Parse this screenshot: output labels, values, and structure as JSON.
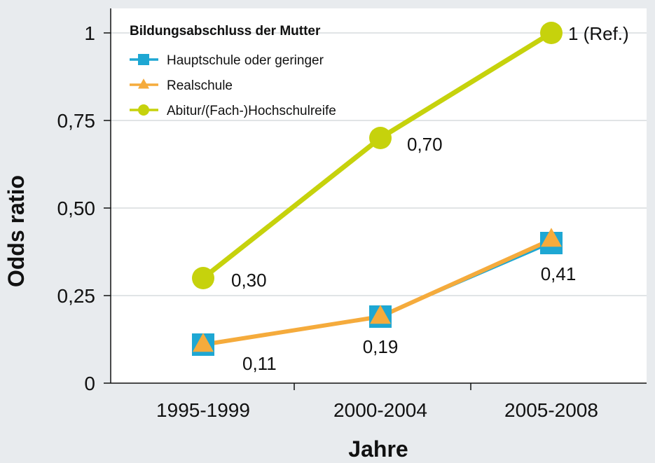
{
  "chart_data": {
    "type": "line",
    "categories": [
      "1995-1999",
      "2000-2004",
      "2005-2008"
    ],
    "ylim": [
      0,
      1
    ],
    "yticks": [
      {
        "value": 0,
        "label": "0"
      },
      {
        "value": 0.25,
        "label": "0,25"
      },
      {
        "value": 0.5,
        "label": "0,50"
      },
      {
        "value": 0.75,
        "label": "0,75"
      },
      {
        "value": 1,
        "label": "1"
      }
    ],
    "xlabel": "Jahre",
    "ylabel": "Odds ratio",
    "grid": true,
    "legend": {
      "title": "Bildungsabschluss der Mutter",
      "placement": "top-left"
    },
    "series": [
      {
        "name": "Hauptschule oder geringer",
        "values": [
          0.11,
          0.19,
          0.4
        ],
        "color": "#1ea7d3",
        "marker": "square"
      },
      {
        "name": "Realschule",
        "values": [
          0.11,
          0.19,
          0.41
        ],
        "color": "#f5ab3c",
        "marker": "triangle"
      },
      {
        "name": "Abitur/(Fach-)Hochschulreife",
        "values": [
          0.3,
          0.7,
          1.0
        ],
        "color": "#c6d20c",
        "marker": "circle"
      }
    ],
    "annotations": [
      {
        "series": 2,
        "index": 0,
        "text": "0,30"
      },
      {
        "series": 2,
        "index": 1,
        "text": "0,70"
      },
      {
        "series": 2,
        "index": 2,
        "text": "1 (Ref.)"
      },
      {
        "series": 1,
        "index": 0,
        "text": "0,11"
      },
      {
        "series": 1,
        "index": 1,
        "text": "0,19"
      },
      {
        "series": 1,
        "index": 2,
        "text": "0,41"
      }
    ]
  }
}
